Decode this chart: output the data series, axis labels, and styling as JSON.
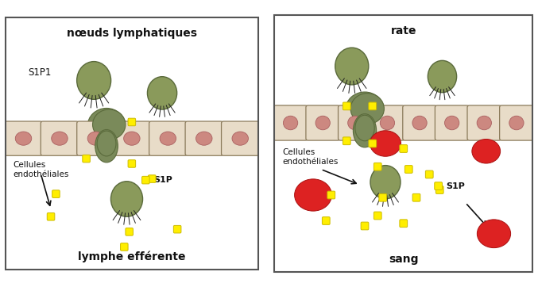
{
  "panel1_title": "nœuds lymphatiques",
  "panel1_bottom_label": "lymphe efférente",
  "panel2_title": "rate",
  "panel2_bottom_label": "sang",
  "label_s1p1": "S1P1",
  "label_s1p": "S1P",
  "label_cellules": "Cellules\nendothéliales",
  "color_background": "#ffffff",
  "color_lymphocyte_body": "#8a9a5b",
  "color_lymphocyte_outline": "#5a6a3b",
  "color_endothelial_fill": "#e8dcc8",
  "color_endothelial_stroke": "#8a7a5a",
  "color_nucleus_fill": "#cc8880",
  "color_nucleus_stroke": "#aa6060",
  "color_s1p": "#ffee00",
  "color_s1p_stroke": "#ccbb00",
  "color_rbc": "#dd2222",
  "color_passage": "#7a8a5a",
  "color_text": "#111111",
  "color_arrow": "#111111",
  "figsize": [
    6.77,
    3.62
  ],
  "dpi": 100
}
